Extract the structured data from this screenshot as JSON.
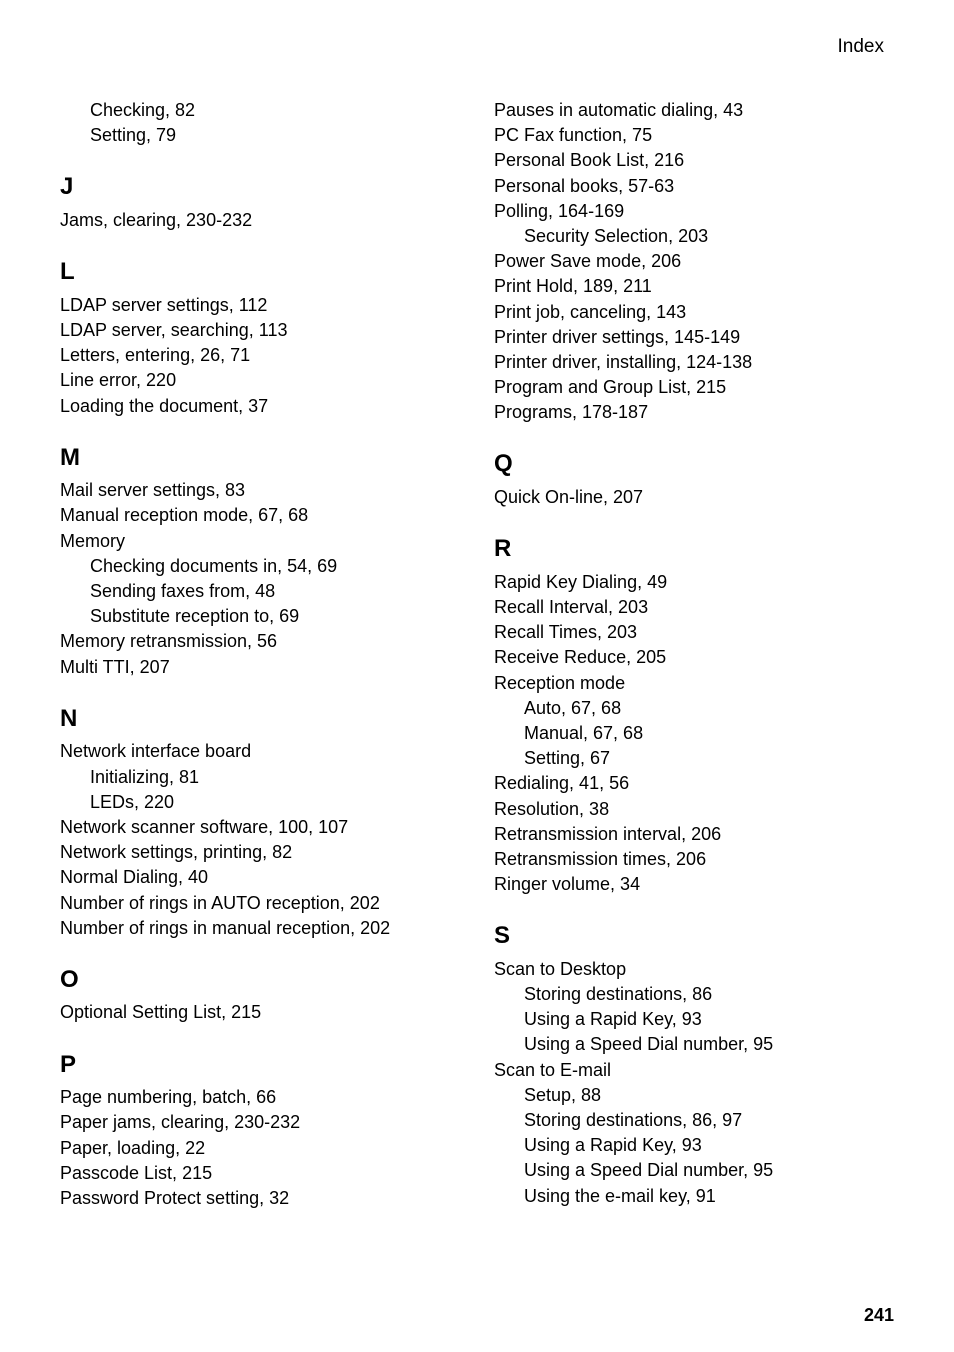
{
  "header": "Index",
  "pageNumber": "241",
  "left": {
    "pre": [
      {
        "text": "Checking, 82",
        "indent": true
      },
      {
        "text": "Setting, 79",
        "indent": true
      }
    ],
    "sections": [
      {
        "letter": "J",
        "entries": [
          {
            "text": "Jams, clearing, 230-232"
          }
        ]
      },
      {
        "letter": "L",
        "entries": [
          {
            "text": "LDAP server settings, 112"
          },
          {
            "text": "LDAP server, searching, 113"
          },
          {
            "text": "Letters, entering, 26, 71"
          },
          {
            "text": "Line error, 220"
          },
          {
            "text": "Loading the document, 37"
          }
        ]
      },
      {
        "letter": "M",
        "entries": [
          {
            "text": "Mail server settings, 83"
          },
          {
            "text": "Manual reception mode, 67, 68"
          },
          {
            "text": "Memory"
          },
          {
            "text": "Checking documents in, 54, 69",
            "indent": true
          },
          {
            "text": "Sending faxes from, 48",
            "indent": true
          },
          {
            "text": "Substitute reception to, 69",
            "indent": true
          },
          {
            "text": "Memory retransmission, 56"
          },
          {
            "text": "Multi TTI, 207"
          }
        ]
      },
      {
        "letter": "N",
        "entries": [
          {
            "text": "Network interface board"
          },
          {
            "text": "Initializing, 81",
            "indent": true
          },
          {
            "text": "LEDs, 220",
            "indent": true
          },
          {
            "text": "Network scanner software, 100, 107"
          },
          {
            "text": "Network settings, printing, 82"
          },
          {
            "text": "Normal Dialing, 40"
          },
          {
            "text": "Number of rings in AUTO reception, 202"
          },
          {
            "text": "Number of rings in manual reception, 202"
          }
        ]
      },
      {
        "letter": "O",
        "entries": [
          {
            "text": "Optional Setting List, 215"
          }
        ]
      },
      {
        "letter": "P",
        "entries": [
          {
            "text": "Page numbering, batch, 66"
          },
          {
            "text": "Paper jams, clearing, 230-232"
          },
          {
            "text": "Paper, loading, 22"
          },
          {
            "text": "Passcode List, 215"
          },
          {
            "text": "Password Protect setting, 32"
          }
        ]
      }
    ]
  },
  "right": {
    "pre": [
      {
        "text": "Pauses in automatic dialing, 43"
      },
      {
        "text": "PC Fax function, 75"
      },
      {
        "text": "Personal Book List, 216"
      },
      {
        "text": "Personal books, 57-63"
      },
      {
        "text": "Polling, 164-169"
      },
      {
        "text": "Security Selection, 203",
        "indent": true
      },
      {
        "text": "Power Save mode, 206"
      },
      {
        "text": "Print Hold, 189, 211"
      },
      {
        "text": "Print job, canceling, 143"
      },
      {
        "text": "Printer driver settings, 145-149"
      },
      {
        "text": "Printer driver, installing, 124-138"
      },
      {
        "text": "Program and Group List, 215"
      },
      {
        "text": "Programs, 178-187"
      }
    ],
    "sections": [
      {
        "letter": "Q",
        "entries": [
          {
            "text": "Quick On-line, 207"
          }
        ]
      },
      {
        "letter": "R",
        "entries": [
          {
            "text": "Rapid Key Dialing, 49"
          },
          {
            "text": "Recall Interval, 203"
          },
          {
            "text": "Recall Times, 203"
          },
          {
            "text": "Receive Reduce, 205"
          },
          {
            "text": "Reception mode"
          },
          {
            "text": "Auto, 67, 68",
            "indent": true
          },
          {
            "text": "Manual, 67, 68",
            "indent": true
          },
          {
            "text": "Setting, 67",
            "indent": true
          },
          {
            "text": "Redialing, 41, 56"
          },
          {
            "text": "Resolution, 38"
          },
          {
            "text": "Retransmission interval, 206"
          },
          {
            "text": "Retransmission times, 206"
          },
          {
            "text": "Ringer volume, 34"
          }
        ]
      },
      {
        "letter": "S",
        "entries": [
          {
            "text": "Scan to Desktop"
          },
          {
            "text": "Storing destinations, 86",
            "indent": true
          },
          {
            "text": "Using a Rapid Key, 93",
            "indent": true
          },
          {
            "text": "Using a Speed Dial number, 95",
            "indent": true
          },
          {
            "text": "Scan to E-mail"
          },
          {
            "text": "Setup, 88",
            "indent": true
          },
          {
            "text": "Storing destinations, 86, 97",
            "indent": true
          },
          {
            "text": "Using a Rapid Key, 93",
            "indent": true
          },
          {
            "text": "Using a Speed Dial number, 95",
            "indent": true
          },
          {
            "text": "Using the e-mail key, 91",
            "indent": true
          }
        ]
      }
    ]
  }
}
